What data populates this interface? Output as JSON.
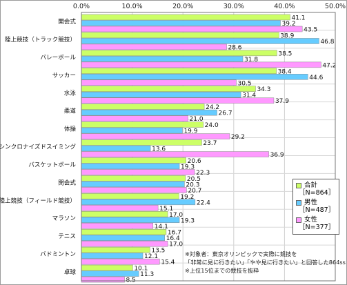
{
  "chart_data": {
    "type": "bar",
    "orientation": "horizontal",
    "xlim": [
      0,
      50
    ],
    "x_ticks": [
      "0.0%",
      "10.0%",
      "20.0%",
      "30.0%",
      "40.0%",
      "50.0%"
    ],
    "grid": true,
    "legend_position": "right",
    "categories": [
      "開会式",
      "陸上競技（トラック競技）",
      "バレーボール",
      "サッカー",
      "水泳",
      "柔道",
      "体操",
      "シンクロナイズドスイミング",
      "バスケットボール",
      "閉会式",
      "陸上競技（フィールド競技）",
      "マラソン",
      "テニス",
      "バドミントン",
      "卓球"
    ],
    "series": [
      {
        "name": "合計",
        "sub": "［N=864］",
        "color": "#ccff66",
        "values": [
          41.1,
          38.9,
          38.5,
          38.4,
          34.3,
          24.2,
          24.0,
          23.7,
          20.6,
          20.5,
          19.2,
          17.0,
          16.7,
          13.5,
          10.1
        ]
      },
      {
        "name": "男性",
        "sub": "［N=487］",
        "color": "#66ccff",
        "values": [
          39.2,
          46.8,
          31.8,
          44.6,
          31.4,
          26.7,
          19.9,
          13.6,
          19.3,
          20.3,
          22.4,
          19.3,
          16.4,
          12.1,
          11.3
        ]
      },
      {
        "name": "女性",
        "sub": "［N=377］",
        "color": "#ff99ff",
        "values": [
          43.5,
          28.6,
          47.2,
          30.5,
          37.9,
          21.0,
          29.2,
          36.9,
          22.3,
          20.7,
          15.1,
          14.1,
          17.0,
          15.4,
          8.5
        ]
      }
    ],
    "annotations": [
      "※対象者：東京オリンピックで実際に競技を",
      "「非常に見に行きたい」「やや見に行きたい」と回答した864ss",
      "※上位15位までの競技を抜粋"
    ]
  }
}
